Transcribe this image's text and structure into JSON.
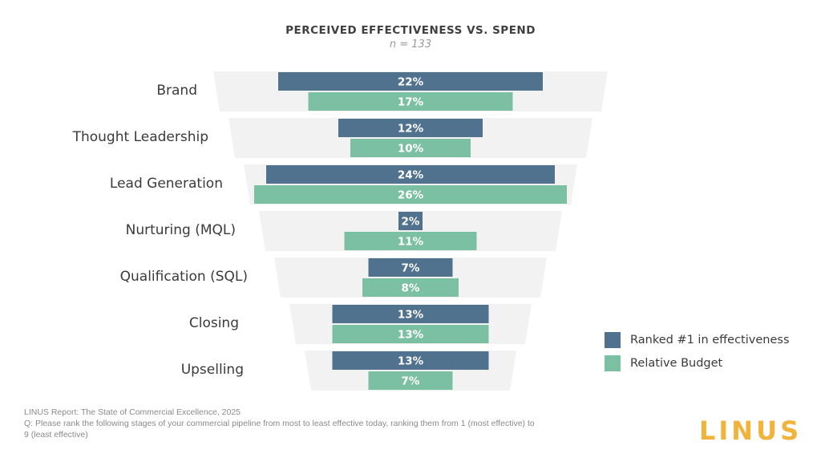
{
  "chart_data": {
    "type": "bar",
    "title": "PERCEIVED EFFECTIVENESS VS. SPEND",
    "subtitle": "n = 133",
    "categories": [
      "Brand",
      "Thought Leadership",
      "Lead Generation",
      "Nurturing (MQL)",
      "Qualification (SQL)",
      "Closing",
      "Upselling"
    ],
    "series": [
      {
        "name": "Ranked #1 in effectiveness",
        "color": "#50728f",
        "values": [
          22,
          12,
          24,
          2,
          7,
          13,
          13
        ]
      },
      {
        "name": "Relative Budget",
        "color": "#7cc0a4",
        "values": [
          17,
          10,
          26,
          11,
          8,
          13,
          7
        ]
      }
    ],
    "value_suffix": "%",
    "orientation": "horizontal-centered-funnel"
  },
  "legend": {
    "ranked_label": "Ranked #1 in effectiveness",
    "budget_label": "Relative Budget"
  },
  "footer": {
    "source": "LINUS Report: The State of Commercial Excellence, 2025",
    "question_line1": "Q:  Please rank the following stages of your commercial pipeline from most to least effective today, ranking them from 1 (most effective) to",
    "question_line2": "9 (least effective)"
  },
  "logo_text": "LINUS",
  "colors": {
    "band": "#f2f2f2",
    "ranked": "#50728f",
    "budget": "#7cc0a4",
    "logo": "#f2b33a"
  }
}
